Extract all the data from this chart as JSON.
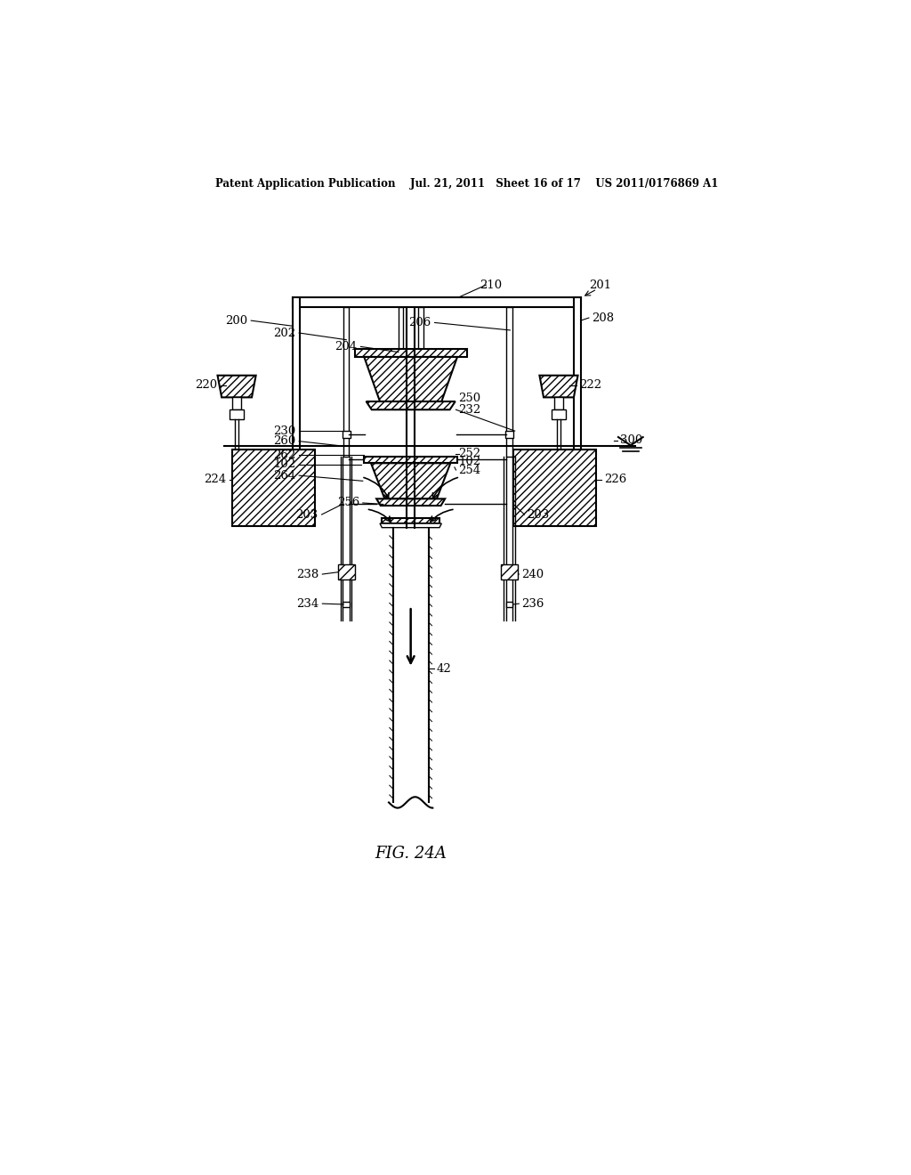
{
  "header": "Patent Application Publication    Jul. 21, 2011   Sheet 16 of 17    US 2011/0176869 A1",
  "fig_label": "FIG. 24A",
  "bg_color": "#ffffff"
}
